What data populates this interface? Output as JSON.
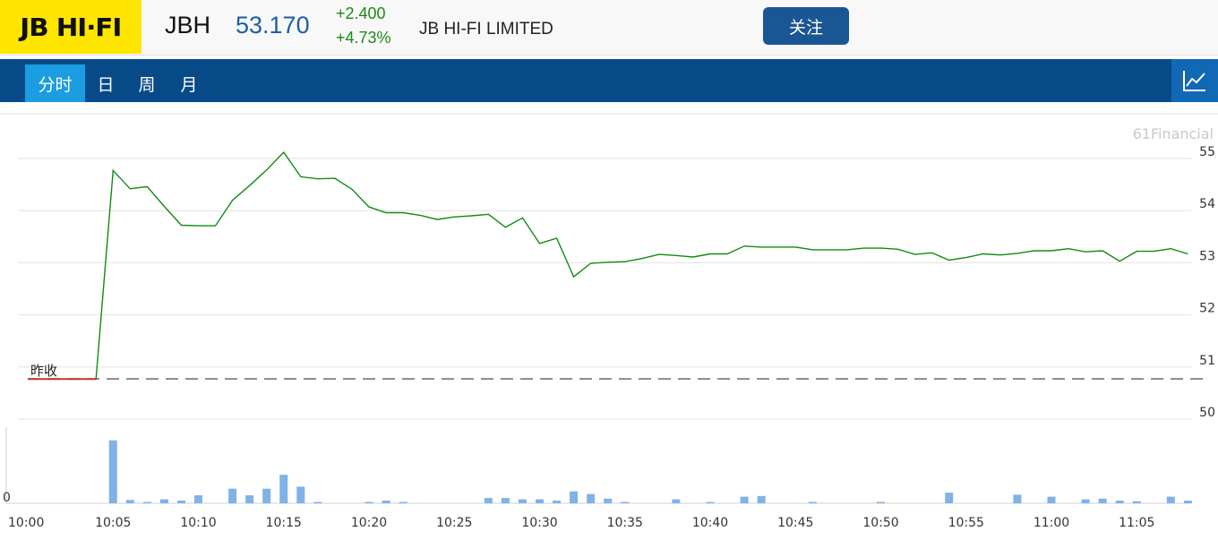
{
  "header": {
    "logo_text": "JB HI·FI",
    "ticker": "JBH",
    "price": "53.170",
    "change": "+2.400",
    "change_pct": "+4.73%",
    "company": "JB HI-FI LIMITED",
    "follow_label": "关注"
  },
  "tabs": [
    {
      "label": "分时",
      "active": true
    },
    {
      "label": "日",
      "active": false
    },
    {
      "label": "周",
      "active": false
    },
    {
      "label": "月",
      "active": false
    }
  ],
  "chart_toggle_icon": "line-chart-icon",
  "colors": {
    "brand_yellow": "#ffe600",
    "nav_blue": "#064b88",
    "active_tab": "#1a9de1",
    "price_blue": "#1b5ea8",
    "up_green": "#1a8a1a",
    "line_green": "#138a13",
    "prev_close_red": "#c0392b",
    "volume_bar": "#7fb2e8"
  },
  "chart_data": {
    "type": "line",
    "watermark": "61Financial",
    "prev_close_label": "昨收",
    "prev_close": 50.77,
    "y_ticks": [
      55,
      54,
      53,
      52,
      51,
      50
    ],
    "ylim": [
      50,
      55.4
    ],
    "x_ticks": [
      "10:00",
      "10:05",
      "10:10",
      "10:15",
      "10:20",
      "10:25",
      "10:30",
      "10:35",
      "10:40",
      "10:45",
      "10:50",
      "10:55",
      "11:00",
      "11:05"
    ],
    "x_minutes": [
      0,
      1,
      2,
      3,
      4,
      5,
      6,
      7,
      8,
      9,
      10,
      11,
      12,
      13,
      14,
      15,
      16,
      17,
      18,
      19,
      20,
      21,
      22,
      23,
      24,
      25,
      26,
      27,
      28,
      29,
      30,
      31,
      32,
      33,
      34,
      35,
      36,
      37,
      38,
      39,
      40,
      41,
      42,
      43,
      44,
      45,
      46,
      47,
      48,
      49,
      50,
      51,
      52,
      53,
      54,
      55,
      56,
      57,
      58,
      59,
      60,
      61,
      62,
      63,
      64,
      65,
      66,
      67,
      68
    ],
    "price_series": {
      "name": "",
      "values": [
        50.77,
        50.77,
        50.77,
        50.77,
        50.77,
        54.77,
        54.42,
        54.46,
        54.08,
        53.72,
        53.71,
        53.71,
        54.2,
        54.48,
        54.78,
        55.12,
        54.65,
        54.61,
        54.62,
        54.41,
        54.07,
        53.96,
        53.96,
        53.91,
        53.83,
        53.88,
        53.9,
        53.93,
        53.68,
        53.86,
        53.37,
        53.47,
        52.73,
        52.99,
        53.01,
        53.02,
        53.08,
        53.16,
        53.14,
        53.11,
        53.17,
        53.17,
        53.32,
        53.3,
        53.3,
        53.3,
        53.25,
        53.25,
        53.25,
        53.28,
        53.28,
        53.26,
        53.16,
        53.19,
        53.05,
        53.1,
        53.17,
        53.15,
        53.18,
        53.23,
        53.23,
        53.27,
        53.21,
        53.23,
        53.03,
        53.22,
        53.22,
        53.27,
        53.17
      ]
    },
    "volume_series": {
      "name": "",
      "zero_label": "0",
      "values": [
        0,
        0,
        0,
        0,
        0,
        95,
        5,
        2,
        6,
        4,
        12,
        0,
        22,
        12,
        22,
        43,
        25,
        2,
        0,
        0,
        2,
        4,
        2,
        0,
        0,
        0,
        0,
        8,
        8,
        6,
        6,
        4,
        18,
        14,
        7,
        2,
        0,
        0,
        6,
        0,
        2,
        0,
        10,
        11,
        0,
        0,
        2,
        0,
        0,
        0,
        2,
        0,
        0,
        0,
        16,
        0,
        0,
        0,
        13,
        0,
        10,
        0,
        6,
        7,
        4,
        3,
        0,
        10,
        4
      ]
    }
  }
}
